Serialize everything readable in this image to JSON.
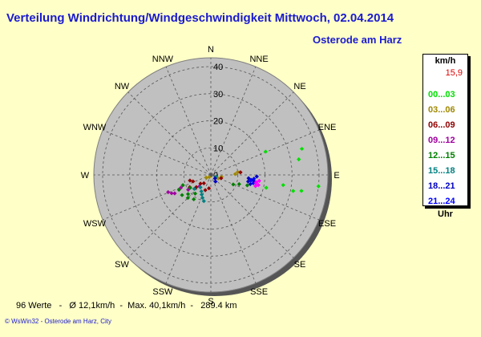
{
  "title": "Verteilung Windrichtung/Windgeschwindigkeit  Mittwoch, 02.04.2014",
  "location": "Osterode am Harz",
  "legend": {
    "unit": "km/h",
    "current": "15,9",
    "items": [
      {
        "label": "00...03",
        "color": "#00e000"
      },
      {
        "label": "03...06",
        "color": "#a08800"
      },
      {
        "label": "06...09",
        "color": "#900000"
      },
      {
        "label": "09...12",
        "color": "#a000a0"
      },
      {
        "label": "12...15",
        "color": "#008000"
      },
      {
        "label": "15...18",
        "color": "#008080"
      },
      {
        "label": "18...21",
        "color": "#0000c0"
      },
      {
        "label": "21...24",
        "color": "#0000ff"
      }
    ],
    "uhr": "Uhr"
  },
  "stats": "96 Werte   -   Ø 12,1km/h  -  Max. 40,1km/h  -   289.4 km",
  "footer": "© WsWin32  -  Osterode am Harz, City",
  "chart_data": {
    "type": "scatter",
    "subtype": "wind-rose",
    "directions": [
      "N",
      "NNE",
      "NE",
      "ENE",
      "E",
      "ESE",
      "SE",
      "SSE",
      "S",
      "SSW",
      "SW",
      "WSW",
      "W",
      "WNW",
      "NW",
      "NNW"
    ],
    "radial_ticks": [
      "0",
      "10",
      "20",
      "30",
      "40"
    ],
    "rmax": 40,
    "colors": {
      "c0": "#00e000",
      "c1": "#a08800",
      "c2": "#900000",
      "c3": "#a000a0",
      "c4": "#008000",
      "c5": "#008080",
      "c6": "#0000c0",
      "c7": "#0000ff",
      "c8": "#ff00ff"
    },
    "points": [
      {
        "dir": 67,
        "speed": 22,
        "cls": "c0"
      },
      {
        "dir": 74,
        "speed": 35,
        "cls": "c0"
      },
      {
        "dir": 80,
        "speed": 33,
        "cls": "c0"
      },
      {
        "dir": 96,
        "speed": 40,
        "cls": "c0"
      },
      {
        "dir": 100,
        "speed": 34,
        "cls": "c0"
      },
      {
        "dir": 101,
        "speed": 31,
        "cls": "c0"
      },
      {
        "dir": 98,
        "speed": 27,
        "cls": "c0"
      },
      {
        "dir": 103,
        "speed": 21,
        "cls": "c0"
      },
      {
        "dir": 84,
        "speed": 10,
        "cls": "c1"
      },
      {
        "dir": 88,
        "speed": 9,
        "cls": "c1"
      },
      {
        "dir": 100,
        "speed": 4,
        "cls": "c1"
      },
      {
        "dir": 116,
        "speed": 3,
        "cls": "c1"
      },
      {
        "dir": 215,
        "speed": 1,
        "cls": "c1"
      },
      {
        "dir": 240,
        "speed": 2,
        "cls": "c1"
      },
      {
        "dir": 85,
        "speed": 11,
        "cls": "c2"
      },
      {
        "dir": 108,
        "speed": 4,
        "cls": "c2"
      },
      {
        "dir": 220,
        "speed": 4,
        "cls": "c2"
      },
      {
        "dir": 230,
        "speed": 5,
        "cls": "c2"
      },
      {
        "dir": 250,
        "speed": 7,
        "cls": "c2"
      },
      {
        "dir": 255,
        "speed": 8,
        "cls": "c2"
      },
      {
        "dir": 240,
        "speed": 9,
        "cls": "c2"
      },
      {
        "dir": 200,
        "speed": 6,
        "cls": "c2"
      },
      {
        "dir": 188,
        "speed": 5,
        "cls": "c2"
      },
      {
        "dir": 230,
        "speed": 7,
        "cls": "c2"
      },
      {
        "dir": 245,
        "speed": 16,
        "cls": "c3"
      },
      {
        "dir": 248,
        "speed": 17,
        "cls": "c3"
      },
      {
        "dir": 247,
        "speed": 12,
        "cls": "c3"
      },
      {
        "dir": 237,
        "speed": 10,
        "cls": "c3"
      },
      {
        "dir": 225,
        "speed": 6,
        "cls": "c3"
      },
      {
        "dir": 243,
        "speed": 15,
        "cls": "c3"
      },
      {
        "dir": 230,
        "speed": 11,
        "cls": "c4"
      },
      {
        "dir": 235,
        "speed": 13,
        "cls": "c4"
      },
      {
        "dir": 225,
        "speed": 12,
        "cls": "c4"
      },
      {
        "dir": 245,
        "speed": 13,
        "cls": "c4"
      },
      {
        "dir": 238,
        "speed": 9,
        "cls": "c4"
      },
      {
        "dir": 220,
        "speed": 9,
        "cls": "c4"
      },
      {
        "dir": 215,
        "speed": 11,
        "cls": "c4"
      },
      {
        "dir": 250,
        "speed": 11,
        "cls": "c4"
      },
      {
        "dir": 108,
        "speed": 11,
        "cls": "c4"
      },
      {
        "dir": 113,
        "speed": 9,
        "cls": "c4"
      },
      {
        "dir": 106,
        "speed": 14,
        "cls": "c4"
      },
      {
        "dir": 200,
        "speed": 9,
        "cls": "c5"
      },
      {
        "dir": 195,
        "speed": 10,
        "cls": "c5"
      },
      {
        "dir": 205,
        "speed": 8,
        "cls": "c5"
      },
      {
        "dir": 210,
        "speed": 7,
        "cls": "c5"
      },
      {
        "dir": 230,
        "speed": 8,
        "cls": "c5"
      },
      {
        "dir": 220,
        "speed": 6,
        "cls": "c5"
      },
      {
        "dir": 110,
        "speed": 2,
        "cls": "c5"
      },
      {
        "dir": 95,
        "speed": 14,
        "cls": "c6"
      },
      {
        "dir": 97,
        "speed": 15,
        "cls": "c6"
      },
      {
        "dir": 100,
        "speed": 14,
        "cls": "c6"
      },
      {
        "dir": 103,
        "speed": 15,
        "cls": "c6"
      },
      {
        "dir": 92,
        "speed": 17,
        "cls": "c6"
      },
      {
        "dir": 98,
        "speed": 16,
        "cls": "c6"
      },
      {
        "dir": 130,
        "speed": 2,
        "cls": "c6"
      },
      {
        "dir": 145,
        "speed": 3,
        "cls": "c6"
      },
      {
        "dir": 98,
        "speed": 15,
        "cls": "c7"
      },
      {
        "dir": 101,
        "speed": 16,
        "cls": "c7"
      },
      {
        "dir": 95,
        "speed": 16,
        "cls": "c7"
      },
      {
        "dir": 100,
        "speed": 17,
        "cls": "c8"
      },
      {
        "dir": 102,
        "speed": 18,
        "cls": "c8"
      },
      {
        "dir": 97,
        "speed": 18,
        "cls": "c8"
      },
      {
        "dir": 104,
        "speed": 17,
        "cls": "c8"
      },
      {
        "dir": 99,
        "speed": 17,
        "cls": "c8"
      }
    ]
  }
}
